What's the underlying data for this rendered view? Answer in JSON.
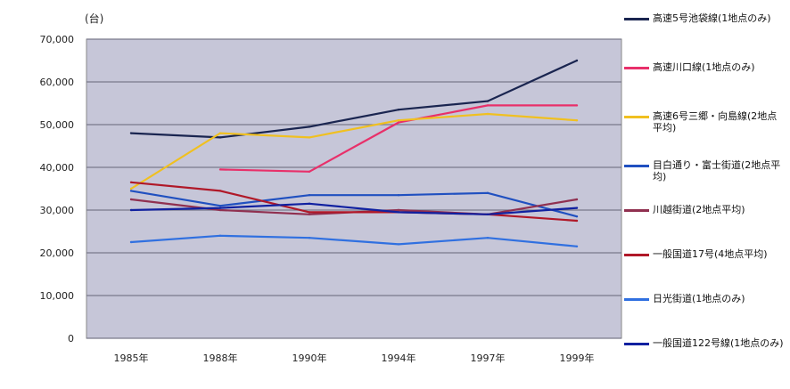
{
  "chart_data": {
    "type": "line",
    "unit_label": "(台)",
    "categories": [
      "1985年",
      "1988年",
      "1990年",
      "1994年",
      "1997年",
      "1999年"
    ],
    "ylim": [
      0,
      70000
    ],
    "yticks": [
      "0",
      "10,000",
      "20,000",
      "30,000",
      "40,000",
      "50,000",
      "60,000",
      "70,000"
    ],
    "grid": true,
    "legend_position": "right",
    "series": [
      {
        "name": "高速5号池袋線(1地点のみ)",
        "color": "#1a2550",
        "values": [
          48000,
          47000,
          49500,
          53500,
          55500,
          65000
        ]
      },
      {
        "name": "高速川口線(1地点のみ)",
        "color": "#e8306a",
        "values": [
          null,
          39500,
          39000,
          50500,
          54500,
          54500
        ]
      },
      {
        "name": "高速6号三郷・向島線(2地点平均)",
        "color": "#f0c020",
        "values": [
          35000,
          48000,
          47000,
          51000,
          52500,
          51000
        ]
      },
      {
        "name": "目白通り・富士街道(2地点平均)",
        "color": "#2050c0",
        "values": [
          34500,
          31000,
          33500,
          33500,
          34000,
          28500
        ]
      },
      {
        "name": "川越街道(2地点平均)",
        "color": "#903050",
        "values": [
          32500,
          30000,
          29000,
          30000,
          29000,
          32500
        ]
      },
      {
        "name": "一般国道17号(4地点平均)",
        "color": "#b01828",
        "values": [
          36500,
          34500,
          29500,
          29500,
          29000,
          27500
        ]
      },
      {
        "name": "日光街道(1地点のみ)",
        "color": "#3070e0",
        "values": [
          22500,
          24000,
          23500,
          22000,
          23500,
          21500
        ]
      },
      {
        "name": "一般国道122号線(1地点のみ)",
        "color": "#1020a0",
        "values": [
          30000,
          30500,
          31500,
          29500,
          29000,
          30500
        ]
      }
    ]
  }
}
